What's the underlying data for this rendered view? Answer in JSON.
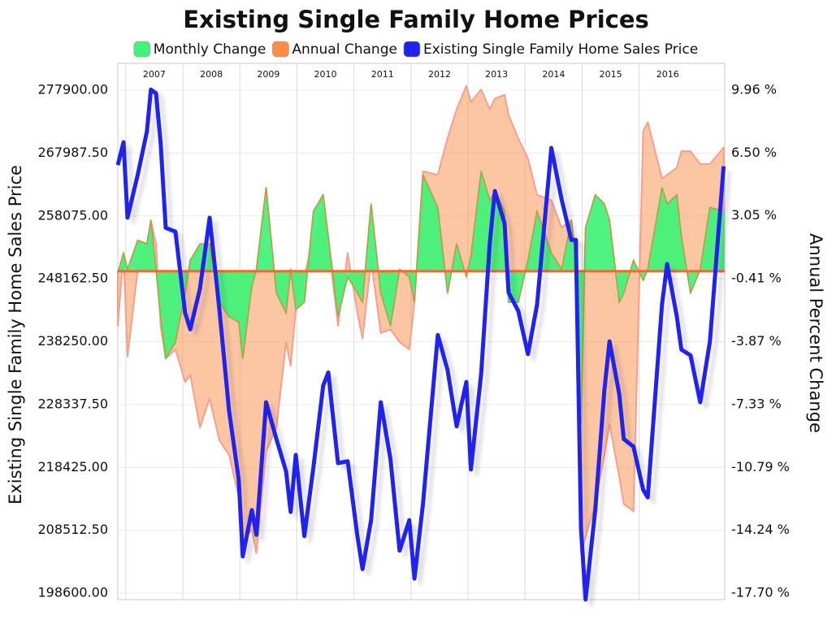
{
  "chart_data": {
    "type": "combo",
    "title": "Existing Single Family Home Prices",
    "y_label": "Existing Single Family Home Sales Price",
    "y2_label": "Annual Percent Change",
    "grid": true,
    "legend": "top",
    "x": [
      2006.86,
      2006.96,
      2007.03,
      2007.21,
      2007.37,
      2007.44,
      2007.53,
      2007.61,
      2007.7,
      2007.87,
      2008.04,
      2008.13,
      2008.3,
      2008.47,
      2008.64,
      2008.81,
      2008.98,
      2009.05,
      2009.21,
      2009.29,
      2009.46,
      2009.64,
      2009.81,
      2009.89,
      2009.98,
      2010.13,
      2010.29,
      2010.46,
      2010.55,
      2010.72,
      2010.89,
      2011.06,
      2011.15,
      2011.3,
      2011.47,
      2011.64,
      2011.8,
      2011.97,
      2012.06,
      2012.21,
      2012.47,
      2012.64,
      2012.8,
      2012.97,
      2013.05,
      2013.23,
      2013.38,
      2013.47,
      2013.64,
      2013.71,
      2013.88,
      2014.05,
      2014.21,
      2014.46,
      2014.64,
      2014.81,
      2014.89,
      2014.98,
      2015.06,
      2015.23,
      2015.39,
      2015.48,
      2015.65,
      2015.73,
      2015.9,
      2016.07,
      2016.15,
      2016.4,
      2016.49,
      2016.66,
      2016.74,
      2016.9,
      2017.07,
      2017.24,
      2017.48
    ],
    "xlim": [
      2006.86,
      2017.5
    ],
    "xticks": [
      2007,
      2008,
      2009,
      2010,
      2011,
      2012,
      2013,
      2014,
      2015,
      2016
    ],
    "ylim": [
      197580,
      282130
    ],
    "yticks": [
      {
        "value": 277900,
        "label": "277900.00"
      },
      {
        "value": 267987.5,
        "label": "267987.50"
      },
      {
        "value": 258075,
        "label": "258075.00"
      },
      {
        "value": 248162.5,
        "label": "248162.50"
      },
      {
        "value": 238250,
        "label": "238250.00"
      },
      {
        "value": 228337.5,
        "label": "228337.50"
      },
      {
        "value": 218425,
        "label": "218425.00"
      },
      {
        "value": 208512.5,
        "label": "208512.50"
      },
      {
        "value": 198600,
        "label": "198600.00"
      }
    ],
    "y2lim": [
      -18.06,
      11.43
    ],
    "y2ticks": [
      {
        "value": 9.96,
        "label": "9.96 %"
      },
      {
        "value": 6.5,
        "label": "6.50 %"
      },
      {
        "value": 3.05,
        "label": "3.05 %"
      },
      {
        "value": -0.41,
        "label": "-0.41 %"
      },
      {
        "value": -3.87,
        "label": "-3.87 %"
      },
      {
        "value": -7.33,
        "label": "-7.33 %"
      },
      {
        "value": -10.79,
        "label": "-10.79 %"
      },
      {
        "value": -14.24,
        "label": "-14.24 %"
      },
      {
        "value": -17.7,
        "label": "-17.70 %"
      }
    ],
    "series": [
      {
        "name": "Monthly Change",
        "type": "area",
        "axis": "y2",
        "color": "#44f27a",
        "values": [
          -0.1,
          1.0,
          0.1,
          1.7,
          1.5,
          2.8,
          0.1,
          -2.5,
          -4.8,
          -3.9,
          -1.2,
          0.6,
          1.5,
          1.5,
          -1.7,
          -2.5,
          -2.8,
          -4.8,
          -0.8,
          0.1,
          4.6,
          -1.2,
          -2.3,
          0.1,
          -2.1,
          -1.7,
          3.3,
          4.2,
          1.9,
          -2.5,
          -0.3,
          -1.2,
          -1.7,
          3.7,
          -1.2,
          -3.0,
          0.1,
          -0.3,
          -1.7,
          5.3,
          3.5,
          -1.2,
          1.5,
          -0.3,
          0.8,
          5.5,
          3.9,
          4.4,
          3.3,
          -1.7,
          -1.7,
          0.6,
          3.3,
          1.0,
          0.1,
          2.8,
          0.6,
          -8.4,
          2.4,
          4.2,
          3.7,
          2.8,
          -1.7,
          -1.2,
          0.6,
          -0.5,
          0.1,
          4.6,
          3.7,
          4.2,
          1.9,
          -1.2,
          0.1,
          3.5,
          3.3
        ]
      },
      {
        "name": "Annual Change",
        "type": "area",
        "axis": "y2",
        "color": "#fb8d48",
        "values": [
          -3.0,
          1.0,
          -4.7,
          0.1,
          1.5,
          2.8,
          1.5,
          -3.0,
          -4.8,
          -4.3,
          -6.1,
          -5.7,
          -8.6,
          -7.0,
          -9.3,
          -10.1,
          -12.4,
          -14.8,
          -14.2,
          -15.5,
          -9.9,
          -8.6,
          -3.9,
          -5.2,
          -2.1,
          -0.3,
          1.9,
          3.3,
          1.5,
          -3.0,
          1.0,
          -2.3,
          -3.7,
          0.6,
          -3.4,
          -3.2,
          -3.9,
          -4.3,
          -1.7,
          5.5,
          5.3,
          7.3,
          8.9,
          10.2,
          9.3,
          10.0,
          8.9,
          9.5,
          9.7,
          8.6,
          7.3,
          6.2,
          4.2,
          3.9,
          2.4,
          2.8,
          1.0,
          -15.5,
          -14.6,
          -12.8,
          -10.1,
          -8.4,
          -11.3,
          -12.8,
          -13.2,
          7.7,
          8.2,
          5.1,
          5.3,
          5.7,
          6.6,
          6.6,
          5.9,
          5.9,
          6.8
        ]
      },
      {
        "name": "Existing Single Family Home Sales Price",
        "type": "line",
        "axis": "y",
        "color": "#2222ee",
        "values": [
          266100,
          269700,
          257800,
          264600,
          271400,
          278000,
          277400,
          269700,
          256200,
          255600,
          242800,
          240200,
          246600,
          257800,
          243400,
          227400,
          216500,
          204400,
          211700,
          207800,
          228700,
          222900,
          217800,
          211400,
          220400,
          207600,
          218500,
          231300,
          233400,
          219100,
          219400,
          207600,
          202400,
          210100,
          228700,
          219700,
          205300,
          210100,
          200900,
          212700,
          239300,
          233800,
          224900,
          231900,
          218100,
          233200,
          253700,
          262000,
          256900,
          246000,
          243100,
          236300,
          244100,
          268800,
          260700,
          254300,
          254300,
          208800,
          197600,
          211700,
          230600,
          238300,
          230000,
          222900,
          221700,
          214900,
          213700,
          244100,
          250500,
          242200,
          237000,
          236100,
          228700,
          238300,
          265900
        ]
      }
    ]
  }
}
